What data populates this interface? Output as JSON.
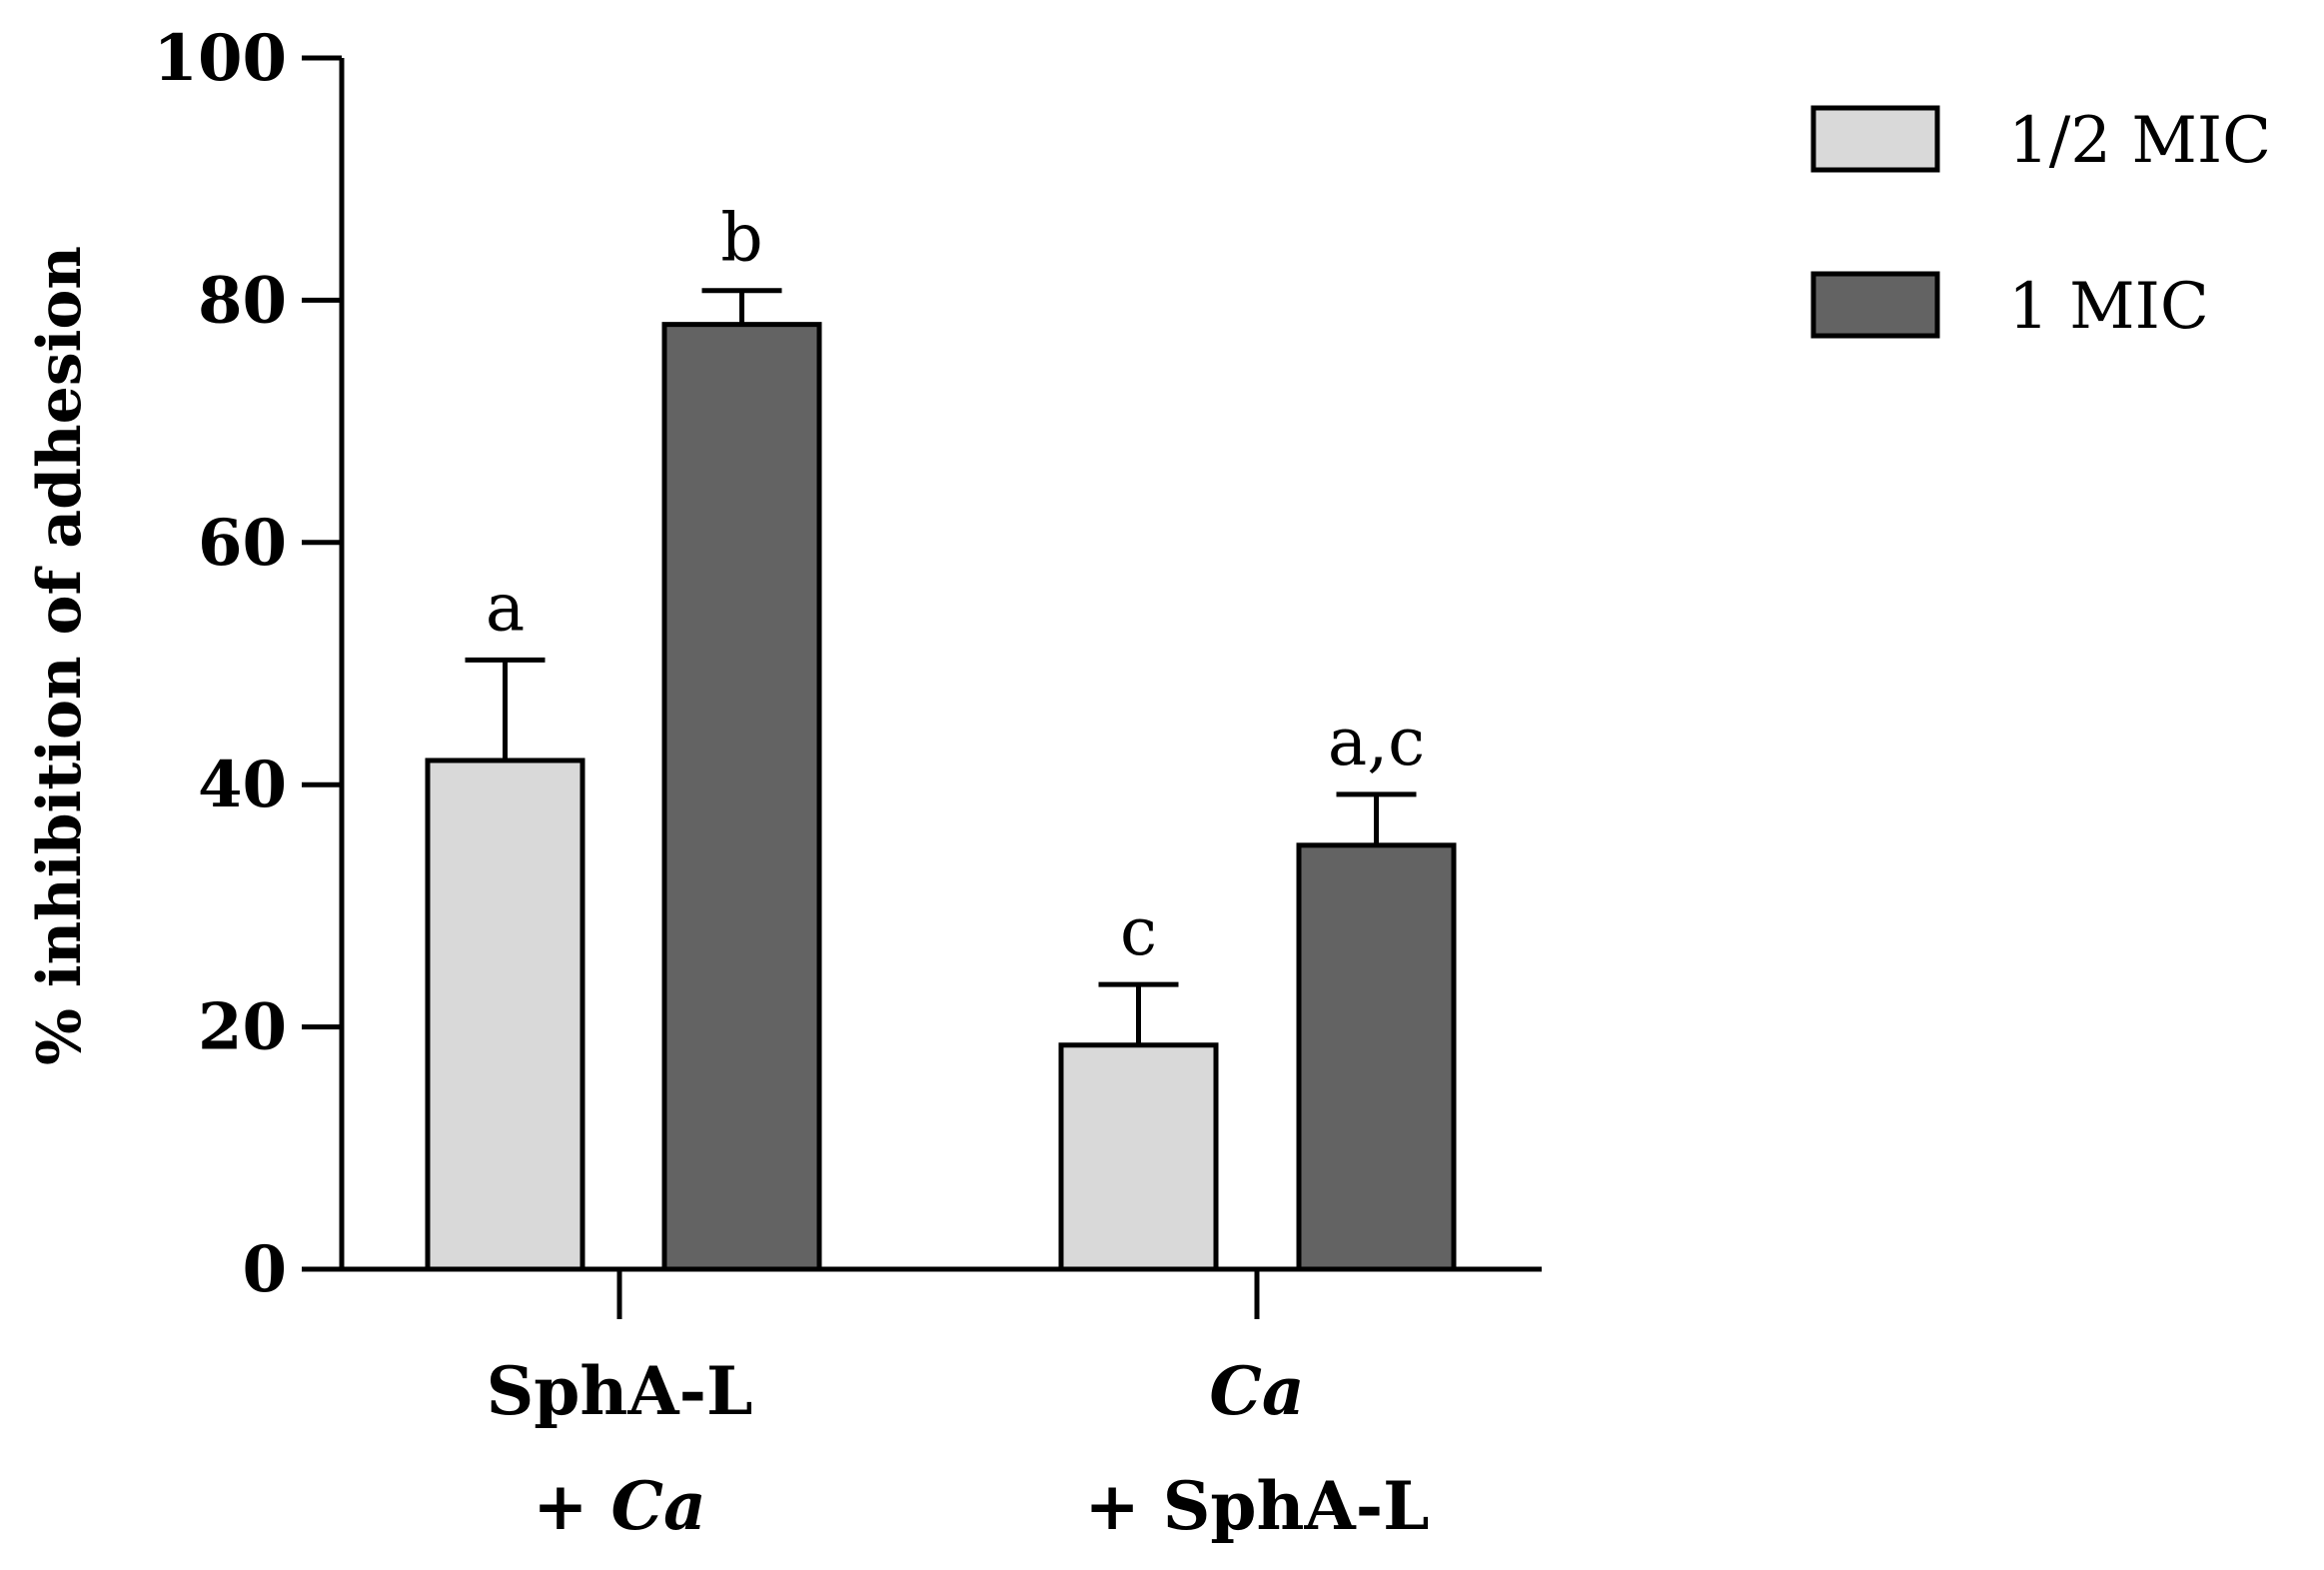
{
  "chart_data": {
    "type": "bar",
    "ylabel": "% inhibition of adhesion",
    "ylim": [
      0,
      100
    ],
    "yticks": [
      0,
      20,
      40,
      60,
      80,
      100
    ],
    "groups": [
      {
        "line1": [
          {
            "text": "SphA-L",
            "italic": false
          }
        ],
        "line2": [
          {
            "text": "+ ",
            "italic": false
          },
          {
            "text": "Ca",
            "italic": true
          }
        ]
      },
      {
        "line1": [
          {
            "text": "Ca",
            "italic": true
          }
        ],
        "line2": [
          {
            "text": "+ SphA-L",
            "italic": false
          }
        ]
      }
    ],
    "series": [
      {
        "name": "1/2 MIC",
        "color": "#d9d9d9",
        "values": [
          42,
          18.5
        ],
        "errors": [
          8.3,
          5
        ],
        "labels": [
          "a",
          "c"
        ]
      },
      {
        "name": "1 MIC",
        "color": "#636363",
        "values": [
          78,
          35
        ],
        "errors": [
          2.8,
          4.2
        ],
        "labels": [
          "b",
          "a,c"
        ]
      }
    ],
    "legend_position": "top-right",
    "grid": false
  }
}
